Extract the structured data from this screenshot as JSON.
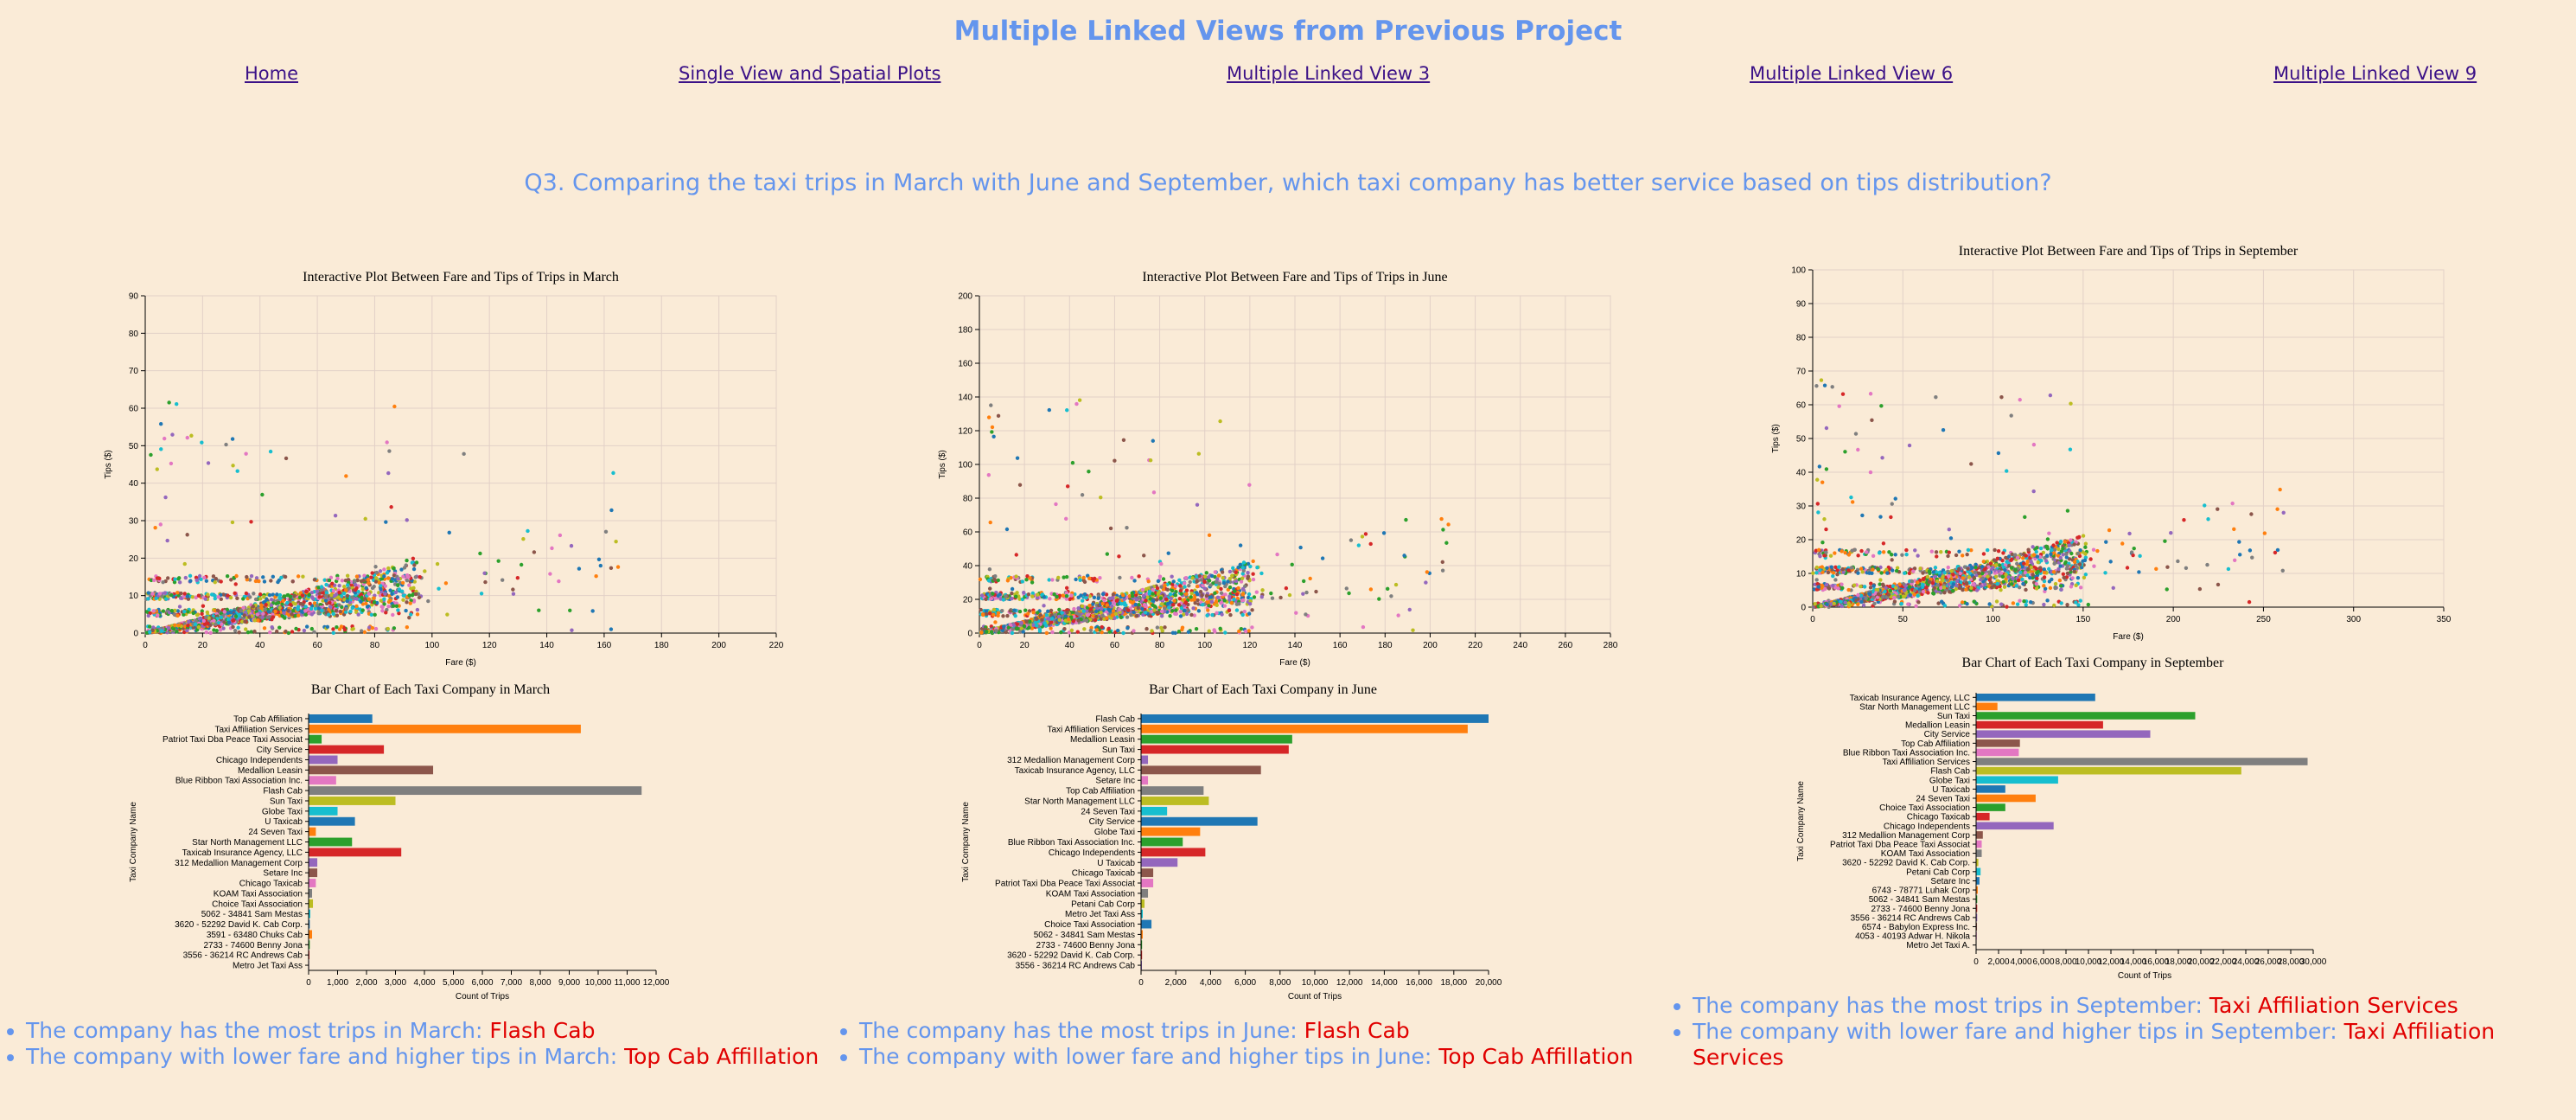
{
  "page": {
    "title": "Multiple Linked Views from Previous Project",
    "nav": [
      "Home",
      "Single View and Spatial Plots",
      "Multiple Linked View 3",
      "Multiple Linked View 6",
      "Multiple Linked View 9"
    ],
    "question": "Q3. Comparing the taxi trips in March with June and September, which taxi company has better service based on tips distribution?"
  },
  "colors": [
    "#1f77b4",
    "#ff7f0e",
    "#2ca02c",
    "#d62728",
    "#9467bd",
    "#8c564b",
    "#e377c2",
    "#7f7f7f",
    "#bcbd22",
    "#17becf"
  ],
  "panels": [
    {
      "scatter": {
        "title": "Interactive Plot Between Fare and Tips of Trips in March",
        "xlabel": "Fare ($)",
        "ylabel": "Tips ($)",
        "xlim": [
          0,
          220
        ],
        "ylim": [
          0,
          90
        ],
        "xticks": [
          0,
          20,
          40,
          60,
          80,
          100,
          120,
          140,
          160,
          180,
          200,
          220
        ],
        "yticks": [
          0,
          10,
          20,
          30,
          40,
          50,
          60,
          70,
          80,
          90
        ]
      },
      "bar": {
        "title": "Bar Chart of Each Taxi Company in March",
        "xlabel": "Count of Trips",
        "ylabel": "Taxi Company Name",
        "xlim": [
          0,
          12000
        ],
        "xticks": [
          "0",
          "1,000",
          "2,000",
          "3,000",
          "4,000",
          "5,000",
          "6,000",
          "7,000",
          "8,000",
          "9,000",
          "10,000",
          "11,000",
          "12,000"
        ],
        "categories": [
          "Top Cab Affiliation",
          "Taxi Affiliation Services",
          "Patriot Taxi Dba Peace Taxi Associat",
          "City Service",
          "Chicago Independents",
          "Medallion Leasin",
          "Blue Ribbon Taxi Association Inc.",
          "Flash Cab",
          "Sun Taxi",
          "Globe Taxi",
          "U Taxicab",
          "24 Seven Taxi",
          "Star North Management LLC",
          "Taxicab Insurance Agency, LLC",
          "312 Medallion Management Corp",
          "Setare Inc",
          "Chicago Taxicab",
          "KOAM Taxi Association",
          "Choice Taxi Association",
          "5062 - 34841 Sam Mestas",
          "3620 - 52292 David K. Cab Corp.",
          "3591 - 63480 Chuks Cab",
          "2733 - 74600 Benny Jona",
          "3556 - 36214 RC Andrews Cab",
          "Metro Jet Taxi Ass"
        ],
        "values": [
          2200,
          9400,
          450,
          2600,
          1000,
          4300,
          950,
          11500,
          3000,
          1000,
          1600,
          250,
          1500,
          3200,
          300,
          300,
          250,
          120,
          150,
          60,
          40,
          120,
          40,
          30,
          20
        ]
      },
      "facts": [
        {
          "text": "The company has the most trips in March:",
          "answer": "Flash Cab"
        },
        {
          "text": "The company with lower fare and higher tips in March:",
          "answer": "Top Cab Affillation"
        }
      ]
    },
    {
      "scatter": {
        "title": "Interactive Plot Between Fare and Tips of Trips in June",
        "xlabel": "Fare ($)",
        "ylabel": "Tips ($)",
        "xlim": [
          0,
          280
        ],
        "ylim": [
          0,
          200
        ],
        "xticks": [
          0,
          20,
          40,
          60,
          80,
          100,
          120,
          140,
          160,
          180,
          200,
          220,
          240,
          260,
          280
        ],
        "yticks": [
          0,
          20,
          40,
          60,
          80,
          100,
          120,
          140,
          160,
          180,
          200
        ]
      },
      "bar": {
        "title": "Bar Chart of Each Taxi Company in June",
        "xlabel": "Count of Trips",
        "ylabel": "Taxi Company Name",
        "xlim": [
          0,
          20000
        ],
        "xticks": [
          "0",
          "2,000",
          "4,000",
          "6,000",
          "8,000",
          "10,000",
          "12,000",
          "14,000",
          "16,000",
          "18,000",
          "20,000"
        ],
        "categories": [
          "Flash Cab",
          "Taxi Affiliation Services",
          "Medallion Leasin",
          "Sun Taxi",
          "312 Medallion Management Corp",
          "Taxicab Insurance Agency, LLC",
          "Setare Inc",
          "Top Cab Affiliation",
          "Star North Management LLC",
          "24 Seven Taxi",
          "City Service",
          "Globe Taxi",
          "Blue Ribbon Taxi Association Inc.",
          "Chicago Independents",
          "U Taxicab",
          "Chicago Taxicab",
          "Patriot Taxi Dba Peace Taxi Associat",
          "KOAM Taxi Association",
          "Petani Cab Corp",
          "Metro Jet Taxi Ass",
          "Choice Taxi Association",
          "5062 - 34841 Sam Mestas",
          "2733 - 74600 Benny Jona",
          "3620 - 52292 David K. Cab Corp.",
          "3556 - 36214 RC Andrews Cab"
        ],
        "values": [
          20000,
          18800,
          8700,
          8500,
          400,
          6900,
          400,
          3600,
          3900,
          1500,
          6700,
          3400,
          2400,
          3700,
          2100,
          700,
          700,
          400,
          200,
          100,
          600,
          100,
          60,
          60,
          50
        ]
      },
      "facts": [
        {
          "text": "The company has the most trips in June:",
          "answer": "Flash Cab"
        },
        {
          "text": "The company with lower fare and higher tips in June:",
          "answer": "Top Cab Affillation"
        }
      ]
    },
    {
      "scatter": {
        "title": "Interactive Plot Between Fare and Tips of Trips in September",
        "xlabel": "Fare ($)",
        "ylabel": "Tips ($)",
        "xlim": [
          0,
          350
        ],
        "ylim": [
          0,
          100
        ],
        "xticks": [
          0,
          50,
          100,
          150,
          200,
          250,
          300,
          350
        ],
        "yticks": [
          0,
          10,
          20,
          30,
          40,
          50,
          60,
          70,
          80,
          90,
          100
        ]
      },
      "bar": {
        "title": "Bar Chart of Each Taxi Company in September",
        "xlabel": "Count of Trips",
        "ylabel": "Taxi Company Name",
        "xlim": [
          0,
          30000
        ],
        "xticks": [
          "0",
          "2,000",
          "4,000",
          "6,000",
          "8,000",
          "10,000",
          "12,000",
          "14,000",
          "16,000",
          "18,000",
          "20,000",
          "22,000",
          "24,000",
          "26,000",
          "28,000",
          "30,000"
        ],
        "categories": [
          "Taxicab Insurance Agency, LLC",
          "Star North Management LLC",
          "Sun Taxi",
          "Medallion Leasin",
          "City Service",
          "Top Cab Affiliation",
          "Blue Ribbon Taxi Association Inc.",
          "Taxi Affiliation Services",
          "Flash Cab",
          "Globe Taxi",
          "U Taxicab",
          "24 Seven Taxi",
          "Choice Taxi Association",
          "Chicago Taxicab",
          "Chicago Independents",
          "312 Medallion Management Corp",
          "Patriot Taxi Dba Peace Taxi Associat",
          "KOAM Taxi Association",
          "3620 - 52292 David K. Cab Corp.",
          "Petani Cab Corp",
          "Setare Inc",
          "6743 - 78771 Luhak Corp",
          "5062 - 34841 Sam Mestas",
          "2733 - 74600 Benny Jona",
          "3556 - 36214 RC Andrews Cab",
          "6574 - Babylon Express Inc.",
          "4053 - 40193 Adwar H. Nikola",
          "Metro Jet Taxi A."
        ],
        "values": [
          10600,
          1900,
          19500,
          11300,
          15500,
          3900,
          3800,
          29500,
          23600,
          7300,
          2600,
          5300,
          2600,
          1200,
          6900,
          600,
          500,
          500,
          200,
          400,
          300,
          150,
          100,
          100,
          100,
          80,
          60,
          40
        ]
      },
      "facts": [
        {
          "text": "The company has the most trips in September:",
          "answer": "Taxi Affiliation Services"
        },
        {
          "text": "The company with lower fare and higher tips in September:",
          "answer": "Taxi Affiliation Services"
        }
      ]
    }
  ]
}
